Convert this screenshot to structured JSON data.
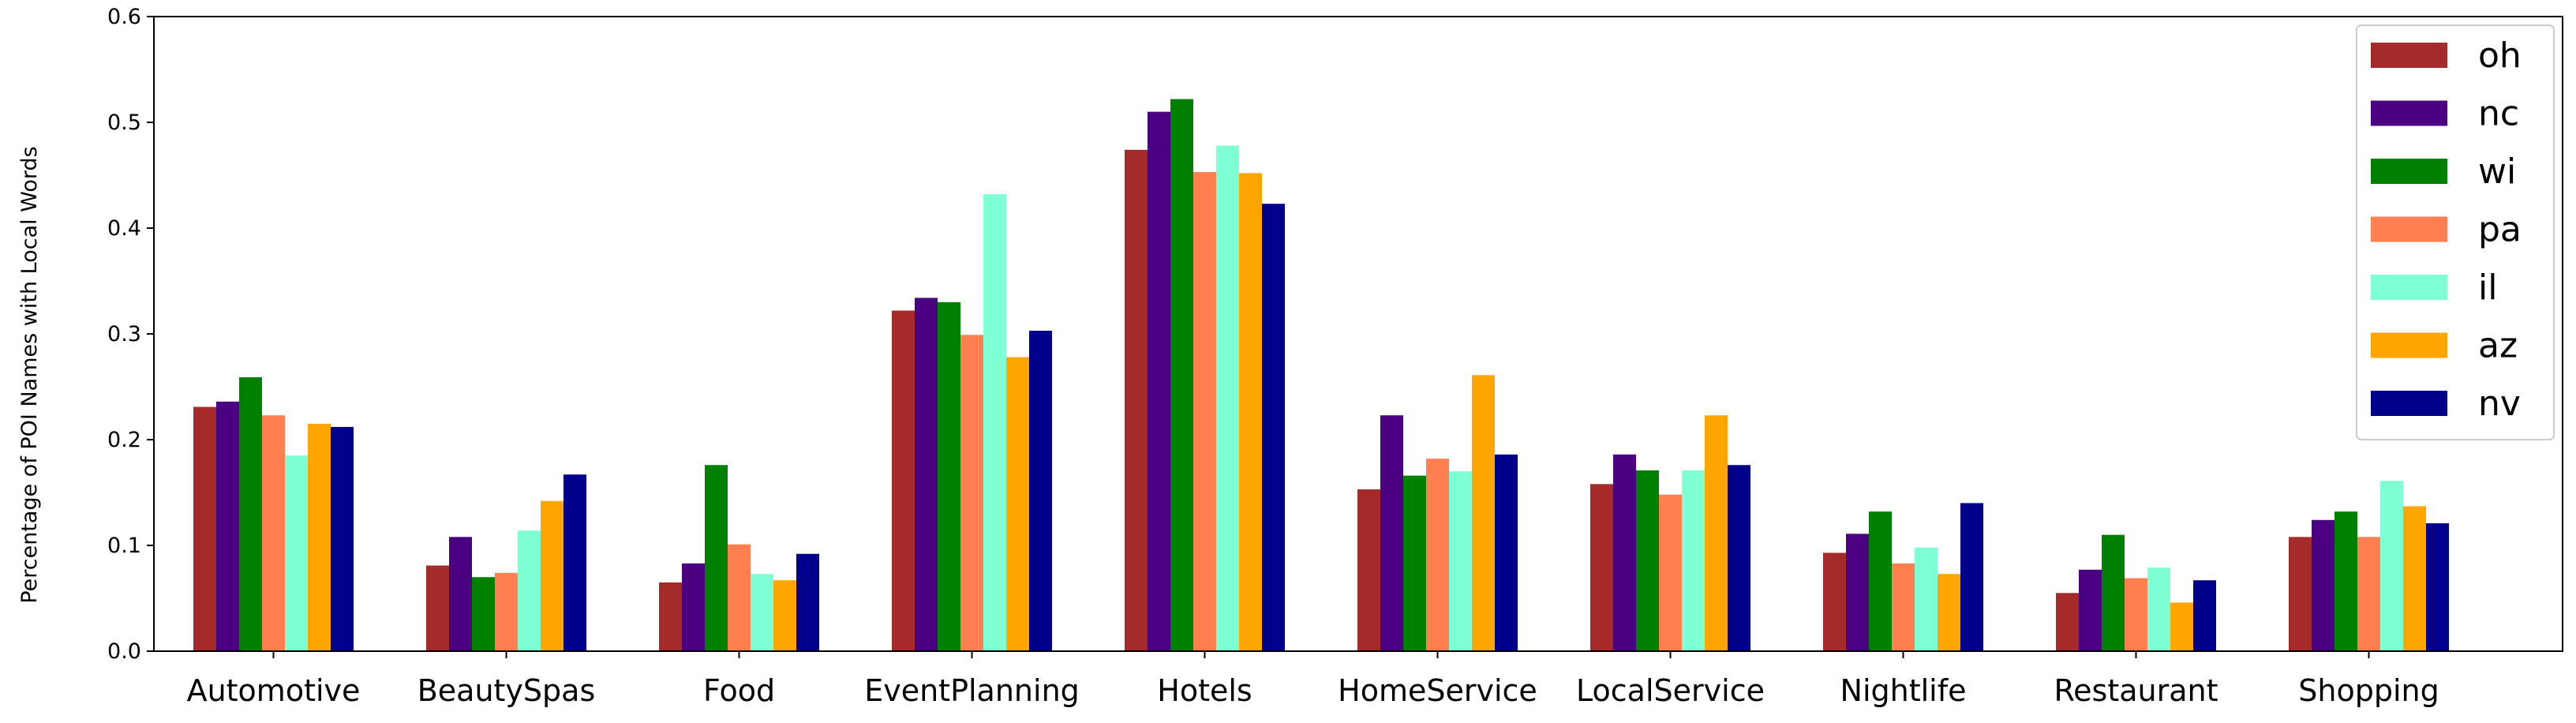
{
  "chart_data": {
    "type": "bar",
    "title": "",
    "xlabel": "",
    "ylabel": "Percentage of POI Names with Local Words",
    "ylim": [
      0,
      0.6
    ],
    "yticks": [
      "0.0",
      "0.1",
      "0.2",
      "0.3",
      "0.4",
      "0.5",
      "0.6"
    ],
    "grid": false,
    "legend_position": "top-right",
    "categories": [
      "Automotive",
      "BeautySpas",
      "Food",
      "EventPlanning",
      "Hotels",
      "HomeService",
      "LocalService",
      "Nightlife",
      "Restaurant",
      "Shopping"
    ],
    "series": [
      {
        "name": "oh",
        "color": "#a52a2a",
        "values": [
          0.231,
          0.081,
          0.065,
          0.322,
          0.474,
          0.153,
          0.158,
          0.093,
          0.055,
          0.108
        ]
      },
      {
        "name": "nc",
        "color": "#4b0082",
        "values": [
          0.236,
          0.108,
          0.083,
          0.334,
          0.51,
          0.223,
          0.186,
          0.111,
          0.077,
          0.124
        ]
      },
      {
        "name": "wi",
        "color": "#008000",
        "values": [
          0.259,
          0.07,
          0.176,
          0.33,
          0.522,
          0.166,
          0.171,
          0.132,
          0.11,
          0.132
        ]
      },
      {
        "name": "pa",
        "color": "#ff7f50",
        "values": [
          0.223,
          0.074,
          0.101,
          0.299,
          0.453,
          0.182,
          0.148,
          0.083,
          0.069,
          0.108
        ]
      },
      {
        "name": "il",
        "color": "#7fffd4",
        "values": [
          0.185,
          0.114,
          0.073,
          0.432,
          0.478,
          0.17,
          0.171,
          0.098,
          0.079,
          0.161
        ]
      },
      {
        "name": "az",
        "color": "#ffa500",
        "values": [
          0.215,
          0.142,
          0.067,
          0.278,
          0.452,
          0.261,
          0.223,
          0.073,
          0.046,
          0.137
        ]
      },
      {
        "name": "nv",
        "color": "#00008b",
        "values": [
          0.212,
          0.167,
          0.092,
          0.303,
          0.423,
          0.186,
          0.176,
          0.14,
          0.067,
          0.121
        ]
      }
    ]
  }
}
